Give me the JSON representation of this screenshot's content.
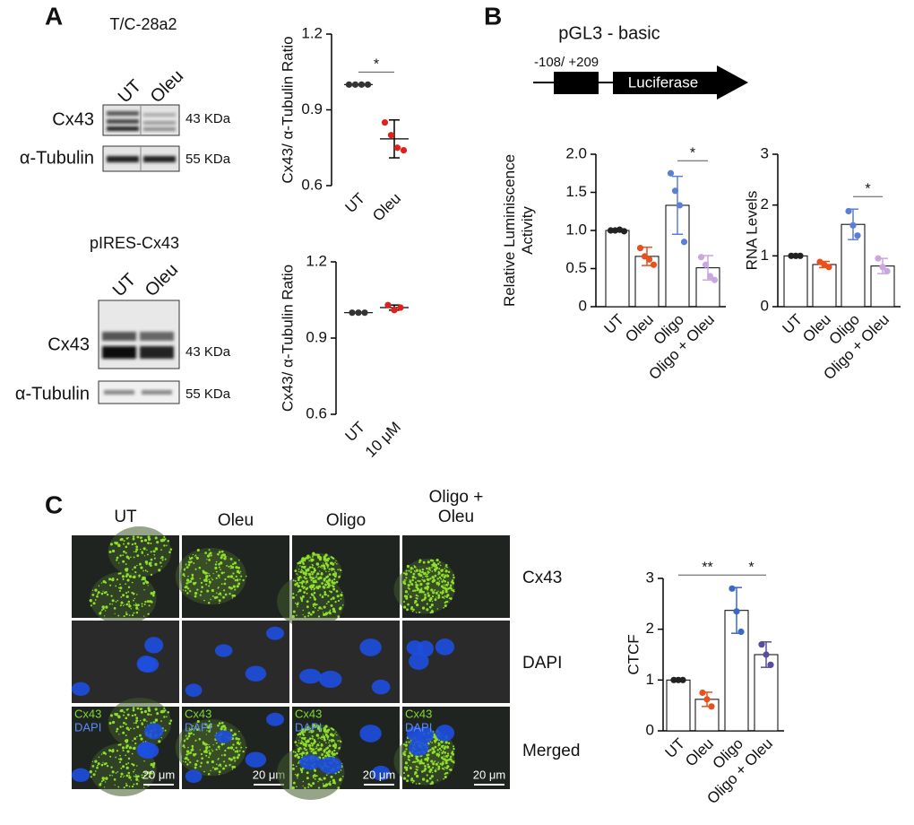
{
  "panel_labels": [
    "A",
    "B",
    "C"
  ],
  "blots": [
    {
      "title": "T/C-28a2",
      "lanes": [
        "UT",
        "Oleu"
      ],
      "rows": [
        {
          "label": "Cx43",
          "size": "43 KDa"
        },
        {
          "label": "α-Tubulin",
          "size": "55 KDa"
        }
      ]
    },
    {
      "title": "pIRES-Cx43",
      "lanes": [
        "UT",
        "Oleu"
      ],
      "rows": [
        {
          "label": "Cx43",
          "size": "43 KDa"
        },
        {
          "label": "α-Tubulin",
          "size": "55 KDa"
        }
      ]
    }
  ],
  "construct": {
    "title": "pGL3 - basic",
    "region": "-108/ +209",
    "gene": "Luciferase"
  },
  "imaging": {
    "columns": [
      "UT",
      "Oleu",
      "Oligo",
      "Oligo + Oleu"
    ],
    "rows": [
      "Cx43",
      "DAPI",
      "Merged"
    ],
    "overlay": [
      "Cx43",
      "DAPI"
    ],
    "scale_bar": "20 μm"
  },
  "chart_data": [
    {
      "type": "dot",
      "ylabel": "Cx43/ α-Tubulin Ratio",
      "categories": [
        "UT",
        "Oleu"
      ],
      "points": [
        [
          1,
          1,
          1,
          1
        ],
        [
          0.85,
          0.8,
          0.75,
          0.74
        ]
      ],
      "values": [
        1,
        0.785
      ],
      "errors": [
        0,
        0.075
      ],
      "point_colors": [
        "#333333",
        "#e0201b"
      ],
      "ylim": [
        0.6,
        1.2
      ],
      "yticks": [
        0.6,
        0.9,
        1.2
      ],
      "significance": [
        {
          "label": "*",
          "between": [
            "UT",
            "Oleu"
          ]
        }
      ]
    },
    {
      "type": "dot",
      "ylabel": "Cx43/ α-Tubulin Ratio",
      "categories": [
        "UT",
        "10 μM"
      ],
      "points": [
        [
          1,
          1,
          1
        ],
        [
          1.03,
          1.01,
          1.02
        ]
      ],
      "values": [
        1,
        1.02
      ],
      "errors": [
        0,
        0.01
      ],
      "point_colors": [
        "#333333",
        "#e0201b"
      ],
      "ylim": [
        0.6,
        1.2
      ],
      "yticks": [
        0.6,
        0.9,
        1.2
      ]
    },
    {
      "type": "bar",
      "ylabel": "Relative Luminiscence Activity",
      "categories": [
        "UT",
        "Oleu",
        "Oligo",
        "Oligo + Oleu"
      ],
      "points": [
        [
          1,
          1,
          1.01,
          0.99
        ],
        [
          0.77,
          0.66,
          0.62,
          0.55
        ],
        [
          1.75,
          1.52,
          1.33,
          0.85
        ],
        [
          0.65,
          0.55,
          0.4,
          0.35
        ]
      ],
      "values": [
        1,
        0.66,
        1.33,
        0.51
      ],
      "errors": [
        0.01,
        0.12,
        0.38,
        0.16
      ],
      "point_colors": [
        "#222222",
        "#e8501e",
        "#5b7fd6",
        "#c9a6e4"
      ],
      "ylim": [
        0,
        2
      ],
      "yticks": [
        0,
        0.5,
        {
          "value": 1,
          "label": "1.0"
        },
        1.5,
        {
          "value": 2,
          "label": "2.0"
        }
      ],
      "significance": [
        {
          "label": "*",
          "between": [
            "Oligo",
            "Oligo + Oleu"
          ]
        }
      ]
    },
    {
      "type": "bar",
      "ylabel": "RNA Levels",
      "categories": [
        "UT",
        "Oleu",
        "Oligo",
        "Oligo + Oleu"
      ],
      "points": [
        [
          1,
          1,
          1
        ],
        [
          0.88,
          0.82,
          0.78
        ],
        [
          1.88,
          1.6,
          1.4
        ],
        [
          0.95,
          0.78,
          0.7
        ]
      ],
      "values": [
        1,
        0.83,
        1.62,
        0.8
      ],
      "errors": [
        0.02,
        0.06,
        0.3,
        0.15
      ],
      "point_colors": [
        "#222222",
        "#e8501e",
        "#5b7fd6",
        "#c9a6e4"
      ],
      "ylim": [
        0,
        3
      ],
      "yticks": [
        0,
        1,
        2,
        3
      ],
      "significance": [
        {
          "label": "*",
          "between": [
            "Oligo",
            "Oligo + Oleu"
          ]
        }
      ]
    },
    {
      "type": "bar",
      "ylabel": "CTCF",
      "categories": [
        "UT",
        "Oleu",
        "Oligo",
        "Oligo + Oleu"
      ],
      "points": [
        [
          1,
          1,
          1
        ],
        [
          0.75,
          0.62,
          0.48
        ],
        [
          2.8,
          2.35,
          1.95
        ],
        [
          1.7,
          1.5,
          1.3
        ]
      ],
      "values": [
        1,
        0.62,
        2.37,
        1.5
      ],
      "errors": [
        0.01,
        0.14,
        0.45,
        0.25
      ],
      "point_colors": [
        "#222222",
        "#e8501e",
        "#3a68c8",
        "#5a4aa0"
      ],
      "ylim": [
        0,
        3
      ],
      "yticks": [
        0,
        1,
        2,
        3
      ],
      "significance": [
        {
          "label": "**",
          "between": [
            "UT",
            "Oligo"
          ]
        },
        {
          "label": "*",
          "between": [
            "Oligo",
            "Oligo + Oleu"
          ]
        }
      ]
    }
  ]
}
